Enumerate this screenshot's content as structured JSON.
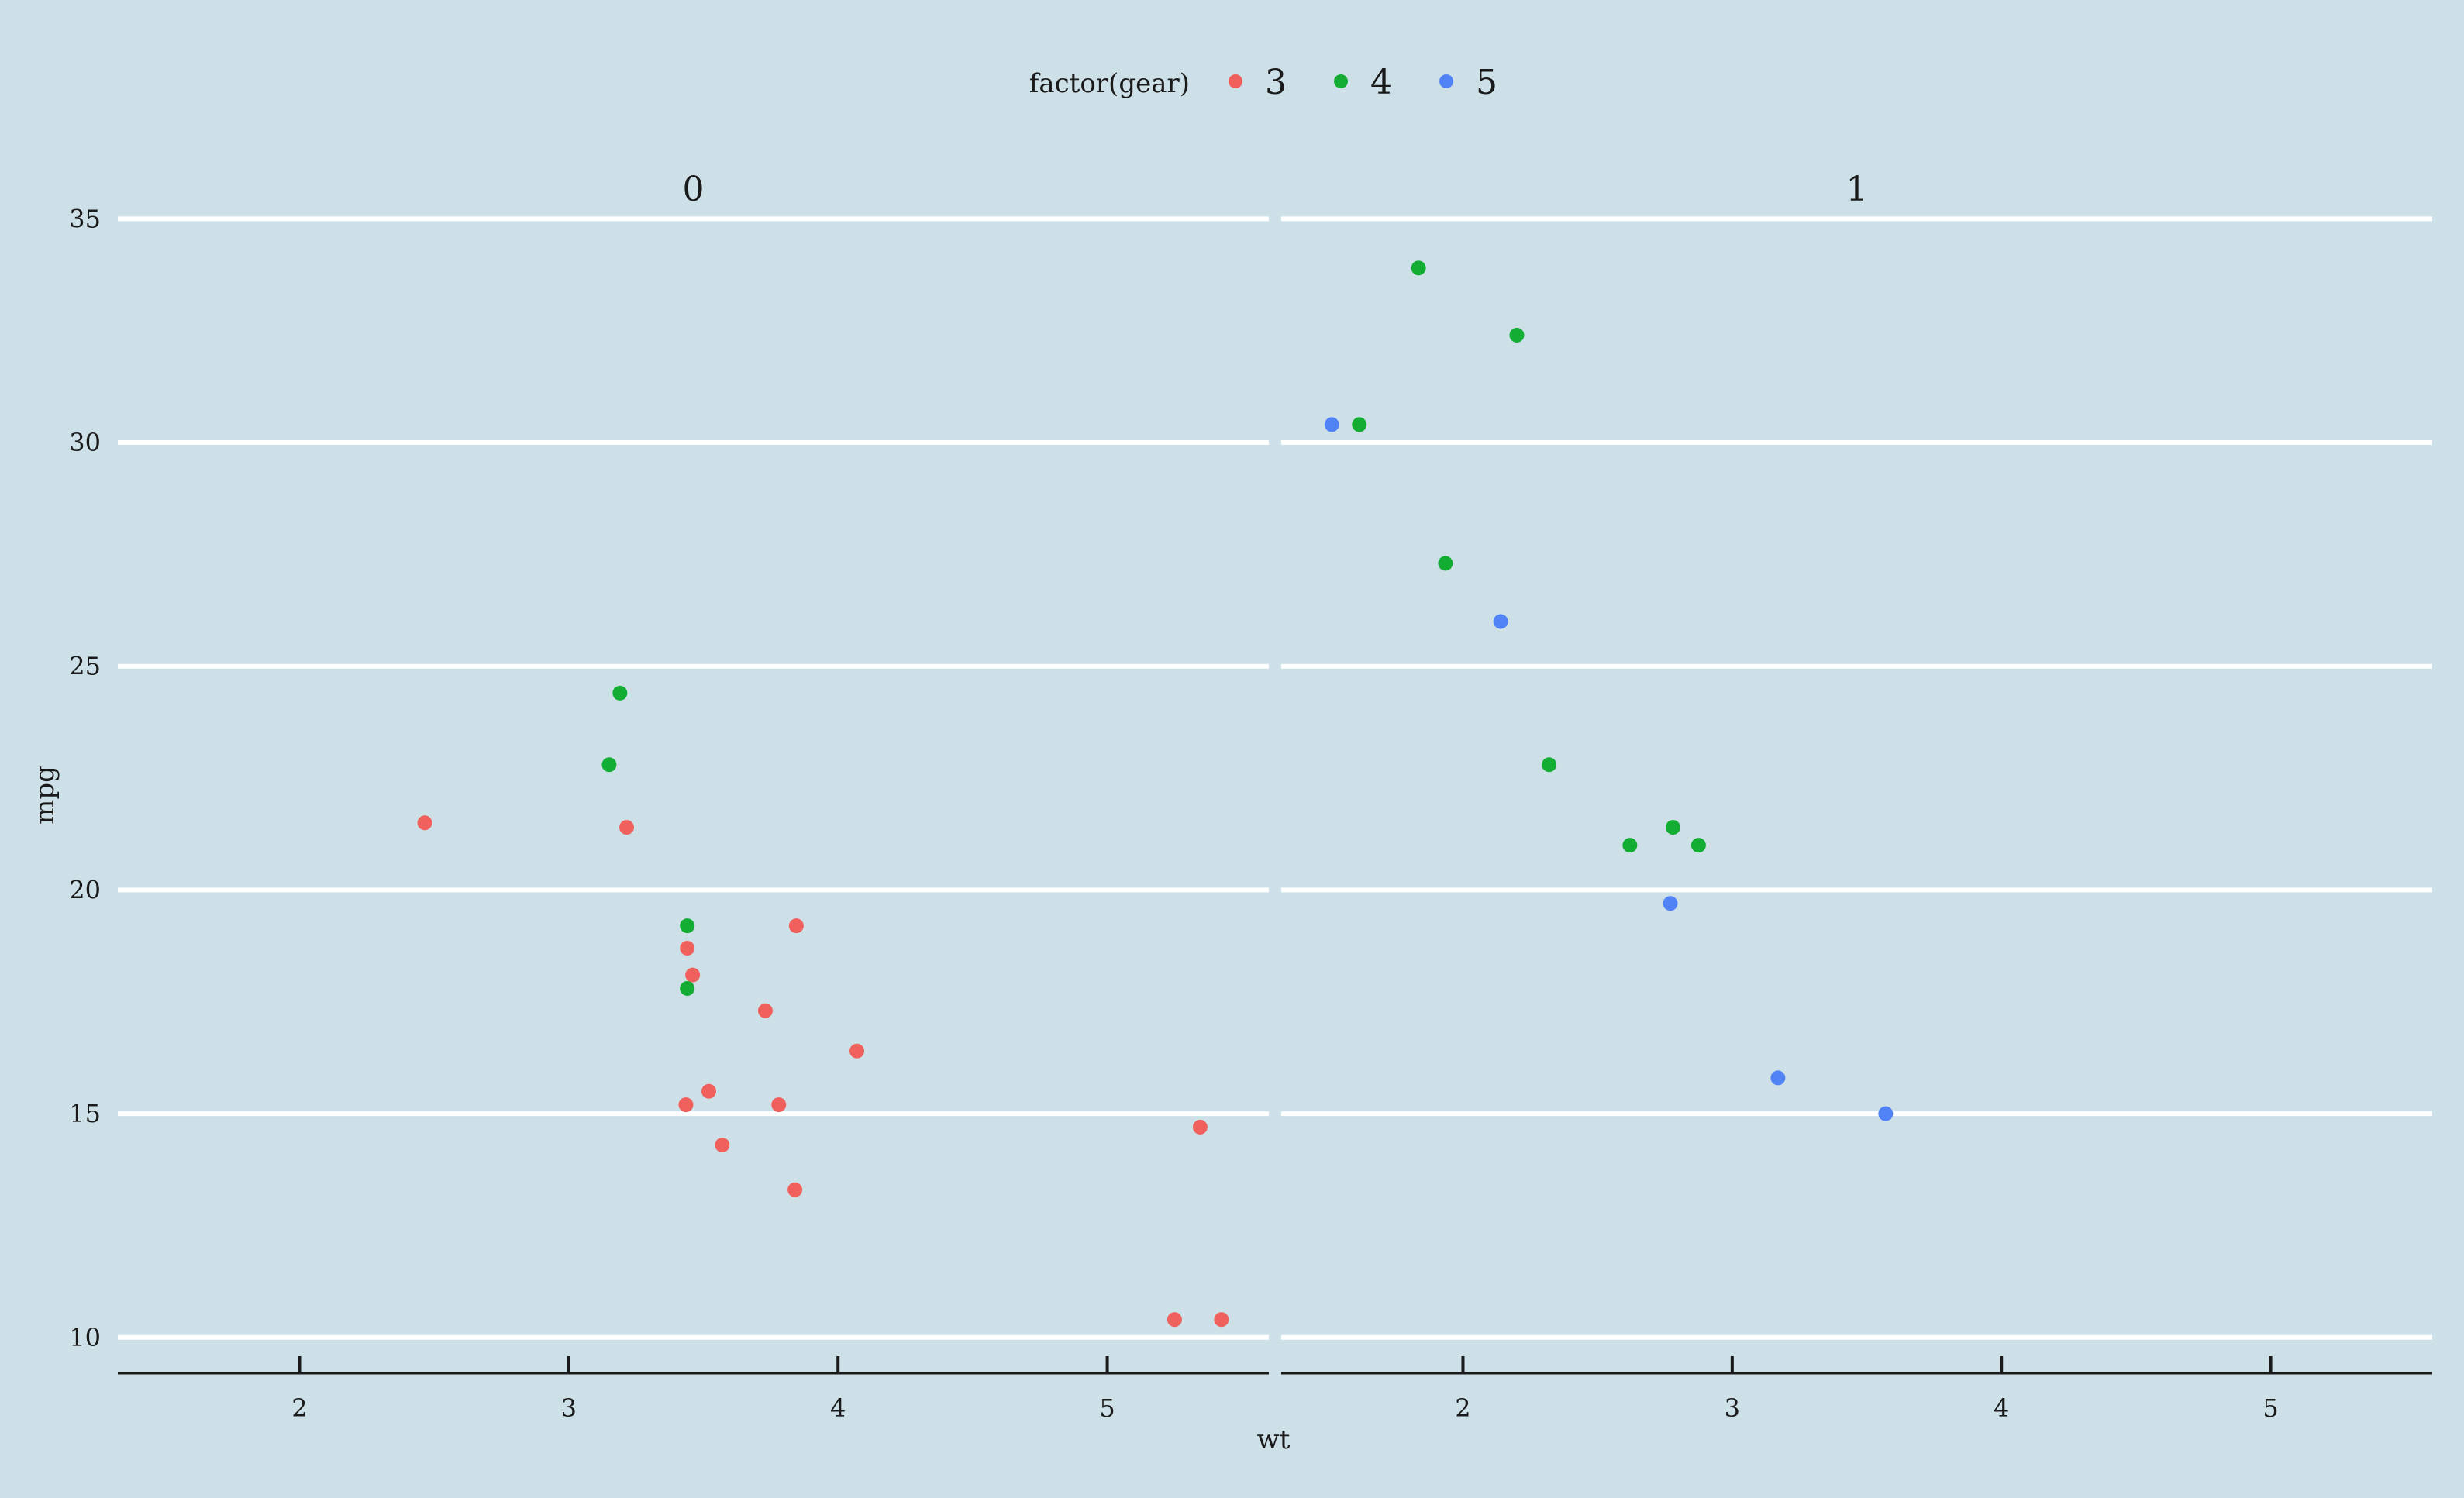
{
  "chart_data": {
    "type": "scatter",
    "facet_var": "am",
    "panels": [
      "0",
      "1"
    ],
    "xlabel": "wt",
    "ylabel": "mpg",
    "xlim": [
      1.325,
      5.6
    ],
    "ylim": [
      9.2,
      35.3
    ],
    "x_ticks": [
      2,
      3,
      4,
      5
    ],
    "y_ticks": [
      10,
      15,
      20,
      25,
      30,
      35
    ],
    "legend": {
      "title": "factor(gear)",
      "position": "top",
      "entries": [
        {
          "label": "3",
          "color": "#f0605d"
        },
        {
          "label": "4",
          "color": "#13ad33"
        },
        {
          "label": "5",
          "color": "#5183f6"
        }
      ]
    },
    "grid": {
      "horizontal_major": true,
      "vertical": false
    },
    "series": [
      {
        "gear": "3",
        "color": "#f0605d",
        "points": [
          {
            "panel": "0",
            "x": 2.465,
            "y": 21.5
          },
          {
            "panel": "0",
            "x": 3.215,
            "y": 21.4
          },
          {
            "panel": "0",
            "x": 3.44,
            "y": 18.7
          },
          {
            "panel": "0",
            "x": 3.46,
            "y": 18.1
          },
          {
            "panel": "0",
            "x": 3.57,
            "y": 14.3
          },
          {
            "panel": "0",
            "x": 4.07,
            "y": 16.4
          },
          {
            "panel": "0",
            "x": 3.73,
            "y": 17.3
          },
          {
            "panel": "0",
            "x": 3.78,
            "y": 15.2
          },
          {
            "panel": "0",
            "x": 5.25,
            "y": 10.4
          },
          {
            "panel": "0",
            "x": 5.424,
            "y": 10.4
          },
          {
            "panel": "0",
            "x": 5.345,
            "y": 14.7
          },
          {
            "panel": "0",
            "x": 3.52,
            "y": 15.5
          },
          {
            "panel": "0",
            "x": 3.435,
            "y": 15.2
          },
          {
            "panel": "0",
            "x": 3.84,
            "y": 13.3
          },
          {
            "panel": "0",
            "x": 3.845,
            "y": 19.2
          }
        ]
      },
      {
        "gear": "4",
        "color": "#13ad33",
        "points": [
          {
            "panel": "0",
            "x": 3.19,
            "y": 24.4
          },
          {
            "panel": "0",
            "x": 3.15,
            "y": 22.8
          },
          {
            "panel": "0",
            "x": 3.44,
            "y": 19.2
          },
          {
            "panel": "0",
            "x": 3.44,
            "y": 17.8
          },
          {
            "panel": "1",
            "x": 2.62,
            "y": 21.0
          },
          {
            "panel": "1",
            "x": 2.875,
            "y": 21.0
          },
          {
            "panel": "1",
            "x": 2.32,
            "y": 22.8
          },
          {
            "panel": "1",
            "x": 2.2,
            "y": 32.4
          },
          {
            "panel": "1",
            "x": 1.615,
            "y": 30.4
          },
          {
            "panel": "1",
            "x": 1.835,
            "y": 33.9
          },
          {
            "panel": "1",
            "x": 1.935,
            "y": 27.3
          },
          {
            "panel": "1",
            "x": 2.78,
            "y": 21.4
          }
        ]
      },
      {
        "gear": "5",
        "color": "#5183f6",
        "points": [
          {
            "panel": "1",
            "x": 2.14,
            "y": 26.0
          },
          {
            "panel": "1",
            "x": 1.513,
            "y": 30.4
          },
          {
            "panel": "1",
            "x": 3.17,
            "y": 15.8
          },
          {
            "panel": "1",
            "x": 2.77,
            "y": 19.7
          },
          {
            "panel": "1",
            "x": 3.57,
            "y": 15.0
          }
        ]
      }
    ]
  }
}
